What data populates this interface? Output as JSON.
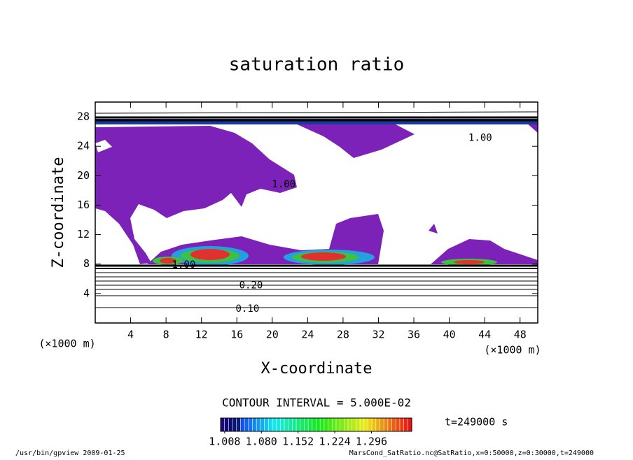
{
  "chart_data": {
    "type": "contour",
    "title": "saturation ratio",
    "x_label": "X-coordinate",
    "y_label": "Z-coordinate",
    "x_unit": "(×1000 m)",
    "y_unit": "(×1000 m)",
    "xlim": [
      0,
      50
    ],
    "xticks": [
      4,
      8,
      12,
      16,
      20,
      24,
      28,
      32,
      36,
      40,
      44,
      48
    ],
    "ylim": [
      0,
      30
    ],
    "yticks": [
      4,
      8,
      12,
      16,
      20,
      24,
      28
    ],
    "contour_labels": [
      {
        "text": "1.00",
        "x": 43.5,
        "y": 25.1
      },
      {
        "text": "1.00",
        "x": 21.3,
        "y": 18.8
      },
      {
        "text": "1.00",
        "x": 10,
        "y": 7.9
      },
      {
        "text": "0.20",
        "x": 17.6,
        "y": 5.1
      },
      {
        "text": "0.10",
        "x": 17.2,
        "y": 1.9
      }
    ],
    "contour_interval": "CONTOUR INTERVAL = 5.000E-02",
    "time_label": "t=249000 s",
    "colorbar": {
      "lim": [
        1.0,
        1.375
      ],
      "ticks": [
        1.008,
        {
          "value": 1.08,
          "label": "1.080"
        },
        1.152,
        1.224,
        1.296
      ]
    },
    "footer_left": "/usr/bin/gpview  2009-01-25",
    "footer_right": "MarsCond_SatRatio.nc@SatRatio,x=0:50000,z=0:30000,t=249000"
  }
}
